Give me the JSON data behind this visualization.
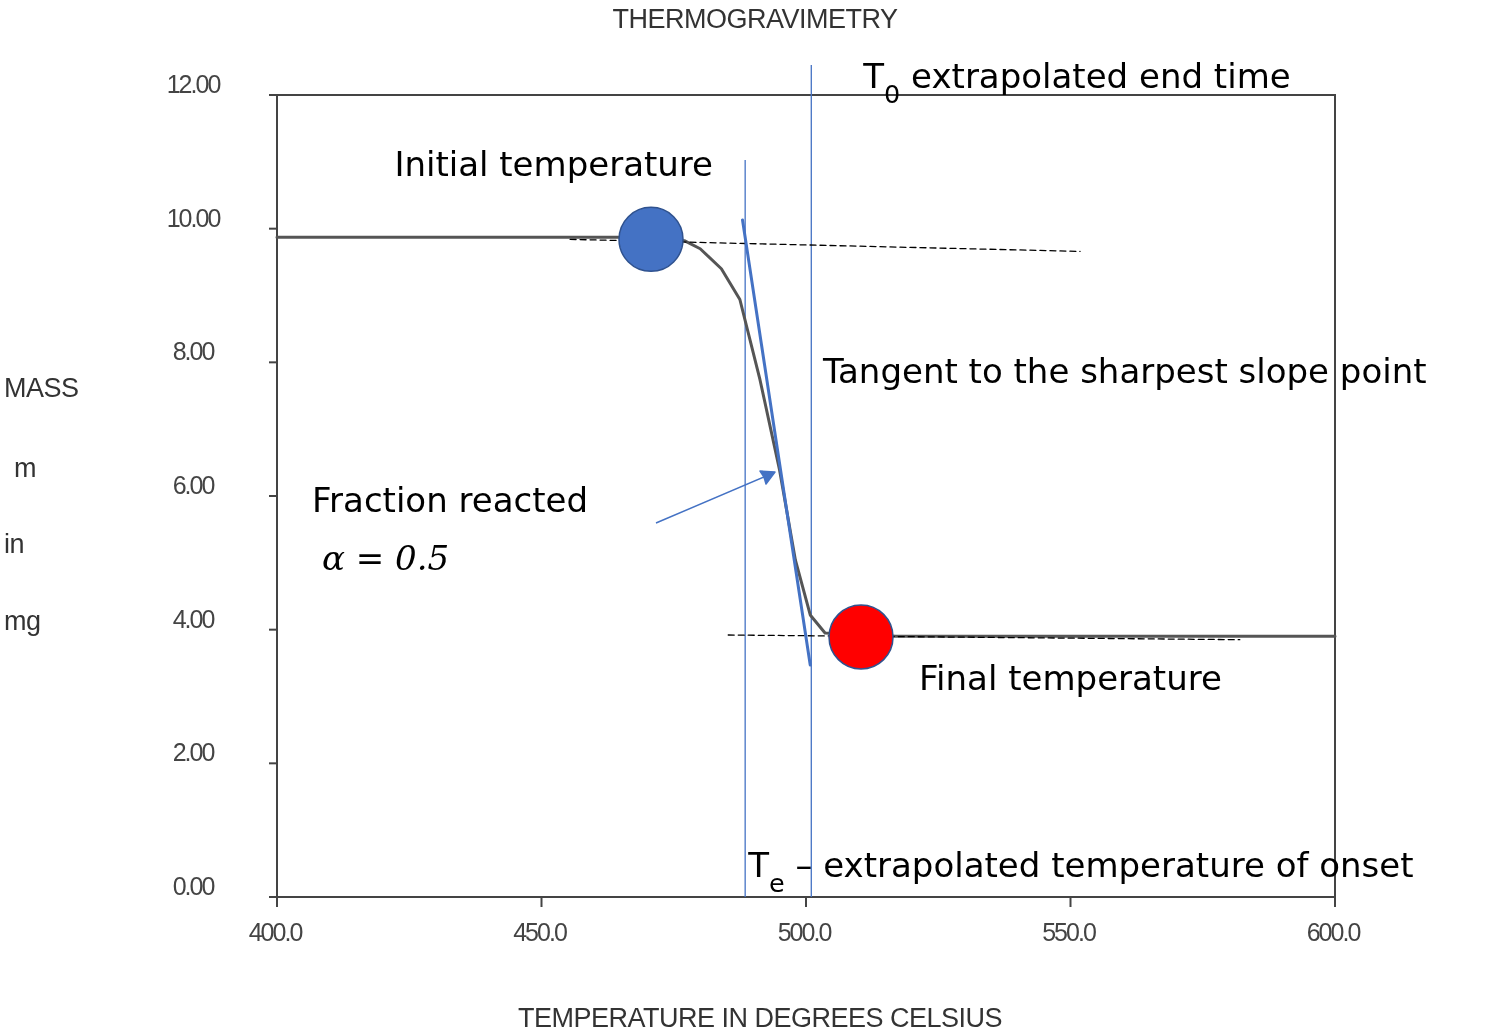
{
  "chart_data": {
    "type": "line",
    "title": "THERMOGRAVIMETRY",
    "xlabel": "TEMPERATURE IN DEGREES CELSIUS",
    "ylabel": "MASS m in mg",
    "xlim": [
      400,
      600
    ],
    "xticks": [
      {
        "value": 400,
        "label": "400.0"
      },
      {
        "value": 450,
        "label": "450.0"
      },
      {
        "value": 500,
        "label": "500.0"
      },
      {
        "value": 550,
        "label": "550.0"
      },
      {
        "value": 600,
        "label": "600.0"
      }
    ],
    "ylim": [
      0,
      12
    ],
    "yticks": [
      {
        "value": 0,
        "label": "0.00"
      },
      {
        "value": 2,
        "label": "2.00"
      },
      {
        "value": 4,
        "label": "4.00"
      },
      {
        "value": 6,
        "label": "6.00"
      },
      {
        "value": 8,
        "label": "8.00"
      },
      {
        "value": 10,
        "label": "10.00"
      },
      {
        "value": 12,
        "label": "12.00"
      }
    ],
    "series": [
      {
        "color": "#555555",
        "x": [
          400,
          465,
          477,
          480,
          484,
          487.5,
          491.3,
          495,
          498,
          500.8,
          503.6,
          517,
          600
        ],
        "values": [
          9.87,
          9.87,
          9.82,
          9.7,
          9.4,
          8.94,
          7.74,
          6.39,
          5.04,
          4.22,
          3.95,
          3.9,
          3.9
        ]
      },
      {
        "type": "line",
        "color": "#000000",
        "line_style": "dashed",
        "x": [
          455.4,
          551.8
        ],
        "values": [
          9.84,
          9.66
        ]
      },
      {
        "type": "line",
        "color": "#000000",
        "line_style": "dashed",
        "x": [
          485.3,
          582
        ],
        "values": [
          3.92,
          3.85
        ]
      },
      {
        "type": "line",
        "color": "#4472c4",
        "x": [
          488,
          500.8
        ],
        "values": [
          10.13,
          3.47
        ]
      },
      {
        "type": "scatter",
        "color": "#4472c4",
        "marker": "circle",
        "x": [
          470.7
        ],
        "values": [
          9.84
        ]
      },
      {
        "type": "scatter",
        "color": "#ff0000",
        "marker": "circle",
        "x": [
          510.4
        ],
        "values": [
          3.89
        ]
      }
    ],
    "ref_lines": [
      {
        "axis": "x",
        "value": 488.5,
        "label": "T$_{e}$ – extrapolated temperature of onset",
        "color": "#4472c4"
      },
      {
        "axis": "x",
        "value": 501,
        "label": "T$_{0}$ extrapolated end time",
        "color": "#4472c4"
      }
    ],
    "annotations": [
      {
        "text": "Initial temperature",
        "x": 470.7,
        "y": 9.84
      },
      {
        "text": "Final temperature",
        "x": 510.4,
        "y": 3.89
      },
      "Fraction reacted α = 0.5",
      {
        "text": "Tangent to the sharpest slope point",
        "x": 494.5,
        "y": 7.0
      }
    ]
  }
}
